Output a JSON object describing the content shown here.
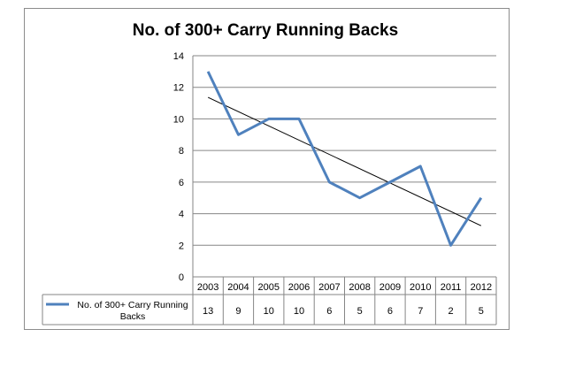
{
  "chart_data": {
    "type": "line",
    "title": "No. of 300+ Carry Running Backs",
    "categories": [
      "2003",
      "2004",
      "2005",
      "2006",
      "2007",
      "2008",
      "2009",
      "2010",
      "2011",
      "2012"
    ],
    "series": [
      {
        "name": "No. of 300+ Carry Running Backs",
        "values": [
          13,
          9,
          10,
          10,
          6,
          5,
          6,
          7,
          2,
          5
        ],
        "color": "#4f81bd"
      }
    ],
    "trendline": {
      "type": "linear",
      "color": "#000000"
    },
    "ylim": [
      0,
      14
    ],
    "yticks": [
      0,
      2,
      4,
      6,
      8,
      10,
      12,
      14
    ],
    "grid": "horizontal",
    "data_table": true,
    "legend_position": "data-table",
    "legend_lines": [
      "No. of 300+ Carry Running",
      "Backs"
    ]
  }
}
